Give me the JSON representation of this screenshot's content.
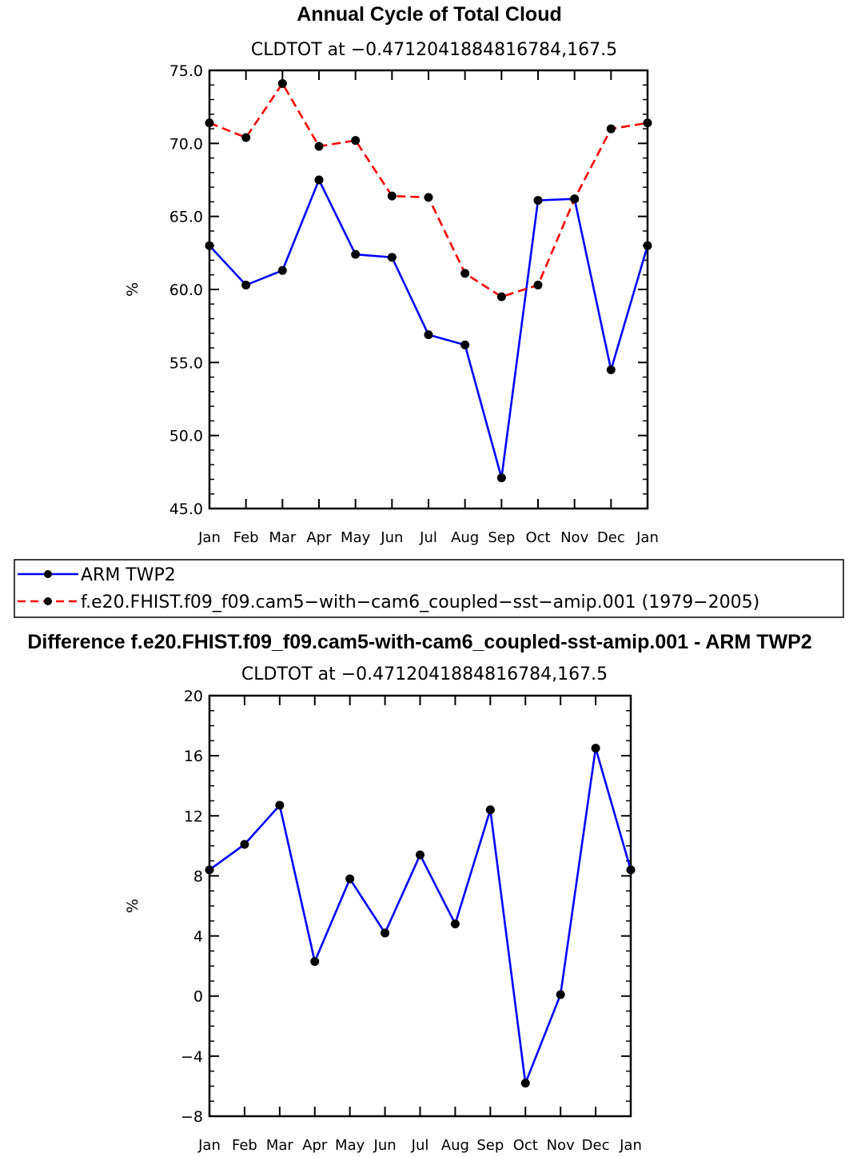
{
  "chart_data": [
    {
      "type": "line",
      "title": "Annual Cycle of Total Cloud",
      "subtitle": "CLDTOT at −0.4712041884816784,167.5",
      "ylabel": "%",
      "categories": [
        "Jan",
        "Feb",
        "Mar",
        "Apr",
        "May",
        "Jun",
        "Jul",
        "Aug",
        "Sep",
        "Oct",
        "Nov",
        "Dec",
        "Jan"
      ],
      "ylim": [
        45.0,
        75.0
      ],
      "yticks": [
        "45.0",
        "50.0",
        "55.0",
        "60.0",
        "65.0",
        "70.0",
        "75.0"
      ],
      "series": [
        {
          "name": "ARM TWP2",
          "color": "#0000ff",
          "dash": "solid",
          "values": [
            63.0,
            60.3,
            61.3,
            67.5,
            62.4,
            62.2,
            56.9,
            56.2,
            47.1,
            66.1,
            66.2,
            54.5,
            63.0
          ]
        },
        {
          "name": "f.e20.FHIST.f09_f09.cam5−with−cam6_coupled−sst−amip.001 (1979−2005)",
          "color": "#ff0000",
          "dash": "dashed",
          "values": [
            71.4,
            70.4,
            74.1,
            69.8,
            70.2,
            66.4,
            66.3,
            61.1,
            59.5,
            60.3,
            66.2,
            71.0,
            71.4
          ]
        }
      ]
    },
    {
      "type": "line",
      "title": "Difference f.e20.FHIST.f09_f09.cam5-with-cam6_coupled-sst-amip.001 - ARM TWP2",
      "subtitle": "CLDTOT at −0.4712041884816784,167.5",
      "ylabel": "%",
      "categories": [
        "Jan",
        "Feb",
        "Mar",
        "Apr",
        "May",
        "Jun",
        "Jul",
        "Aug",
        "Sep",
        "Oct",
        "Nov",
        "Dec",
        "Jan"
      ],
      "ylim": [
        -8,
        20
      ],
      "yticks": [
        "−8",
        "−4",
        "0",
        "4",
        "8",
        "12",
        "16",
        "20"
      ],
      "series": [
        {
          "name": "Difference",
          "color": "#0000ff",
          "dash": "solid",
          "values": [
            8.4,
            10.1,
            12.7,
            2.3,
            7.8,
            4.2,
            9.4,
            4.8,
            12.4,
            -5.8,
            0.1,
            16.5,
            8.4
          ]
        }
      ]
    }
  ]
}
